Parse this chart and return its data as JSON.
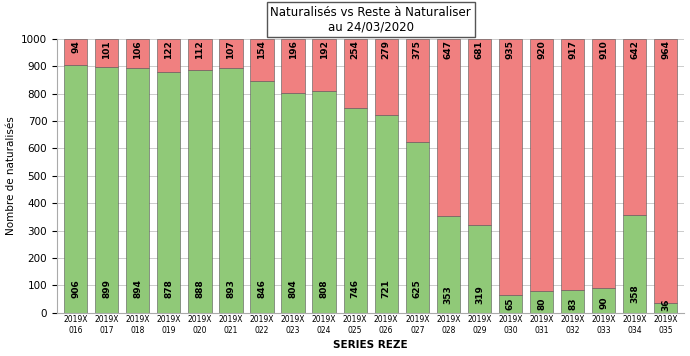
{
  "title_line1": "Naturalisés vs Reste à Naturaliser",
  "title_line2": "au 24/03/2020",
  "xlabel": "SERIES REZE",
  "ylabel": "Nombre de naturalisés",
  "categories": [
    "2019X\n016",
    "2019X\n017",
    "2019X\n018",
    "2019X\n019",
    "2019X\n020",
    "2019X\n021",
    "2019X\n022",
    "2019X\n023",
    "2019X\n024",
    "2019X\n025",
    "2019X\n026",
    "2019X\n027",
    "2019X\n028",
    "2019X\n029",
    "2019X\n030",
    "2019X\n031",
    "2019X\n032",
    "2019X\n033",
    "2019X\n034",
    "2019X\n035"
  ],
  "green_values": [
    906,
    899,
    894,
    878,
    888,
    893,
    846,
    804,
    808,
    746,
    721,
    625,
    353,
    319,
    65,
    80,
    83,
    90,
    358,
    36
  ],
  "red_values": [
    94,
    101,
    106,
    122,
    112,
    107,
    154,
    196,
    192,
    254,
    279,
    375,
    647,
    681,
    935,
    920,
    917,
    910,
    642,
    964
  ],
  "green_color": "#90c978",
  "red_color": "#f08080",
  "ylim": [
    0,
    1000
  ],
  "yticks": [
    0,
    100,
    200,
    300,
    400,
    500,
    600,
    700,
    800,
    900,
    1000
  ],
  "grid_color": "#cccccc",
  "bar_edge_color": "#555555",
  "title_box_color": "#ffffff",
  "title_box_edge": "#555555",
  "label_fontsize": 6.5,
  "axis_fontsize": 7.5,
  "title_fontsize": 8.5,
  "bar_width": 0.75
}
